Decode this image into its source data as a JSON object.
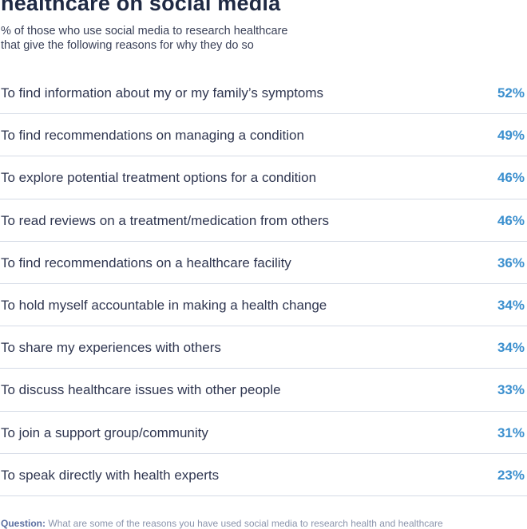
{
  "chart_data": {
    "type": "table",
    "title": "healthcare on social media",
    "subtitle_lines": [
      "% of those who use social media to research healthcare",
      "that give the following reasons for why they do so"
    ],
    "accent_color": "#3b8fce",
    "rows": [
      {
        "label": "To find information about my or my family’s symptoms",
        "value": "52%"
      },
      {
        "label": "To find recommendations on managing a condition",
        "value": "49%"
      },
      {
        "label": "To explore potential treatment options for a condition",
        "value": "46%"
      },
      {
        "label": "To read reviews on a treatment/medication from others",
        "value": "46%"
      },
      {
        "label": "To find recommendations on a healthcare facility",
        "value": "36%"
      },
      {
        "label": "To hold myself accountable in making a health change",
        "value": "34%"
      },
      {
        "label": "To share my experiences with others",
        "value": "34%"
      },
      {
        "label": "To discuss healthcare issues with other people",
        "value": "33%"
      },
      {
        "label": "To join a support group/community",
        "value": "31%"
      },
      {
        "label": "To speak directly with health experts",
        "value": "23%"
      }
    ],
    "footnote": {
      "label": "Question:",
      "text": "What are some of the reasons you have used social media to research health and healthcare"
    }
  }
}
